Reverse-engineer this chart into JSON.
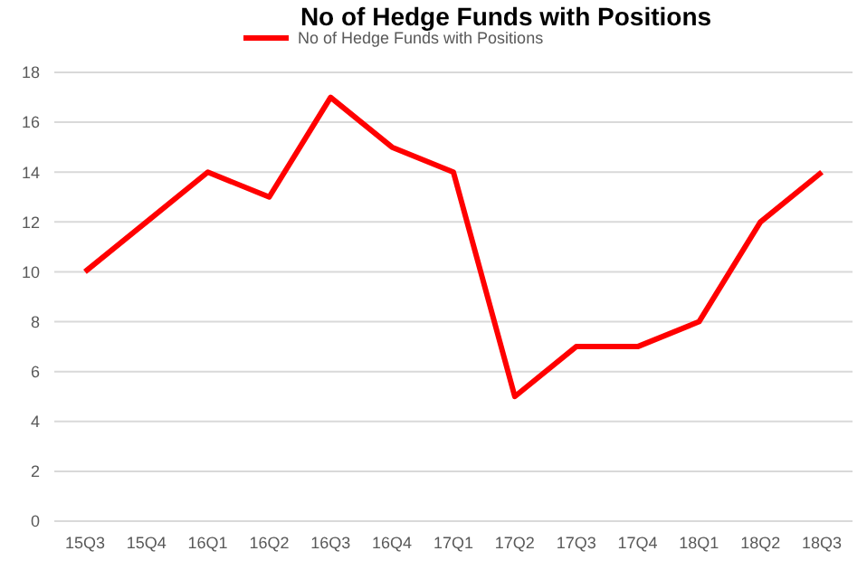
{
  "chart_data": {
    "type": "line",
    "title": "No of Hedge Funds with Positions",
    "categories": [
      "15Q3",
      "15Q4",
      "16Q1",
      "16Q2",
      "16Q3",
      "16Q4",
      "17Q1",
      "17Q2",
      "17Q3",
      "17Q4",
      "18Q1",
      "18Q2",
      "18Q3"
    ],
    "series": [
      {
        "name": "No of Hedge Funds with Positions",
        "color": "#ff0000",
        "values": [
          10,
          12,
          14,
          13,
          17,
          15,
          14,
          5,
          7,
          7,
          8,
          12,
          14
        ]
      }
    ],
    "ylim": [
      0,
      18
    ],
    "yticks": [
      0,
      2,
      4,
      6,
      8,
      10,
      12,
      14,
      16,
      18
    ],
    "grid": "y",
    "legend": "top",
    "marker": "none",
    "line_style": "solid"
  }
}
